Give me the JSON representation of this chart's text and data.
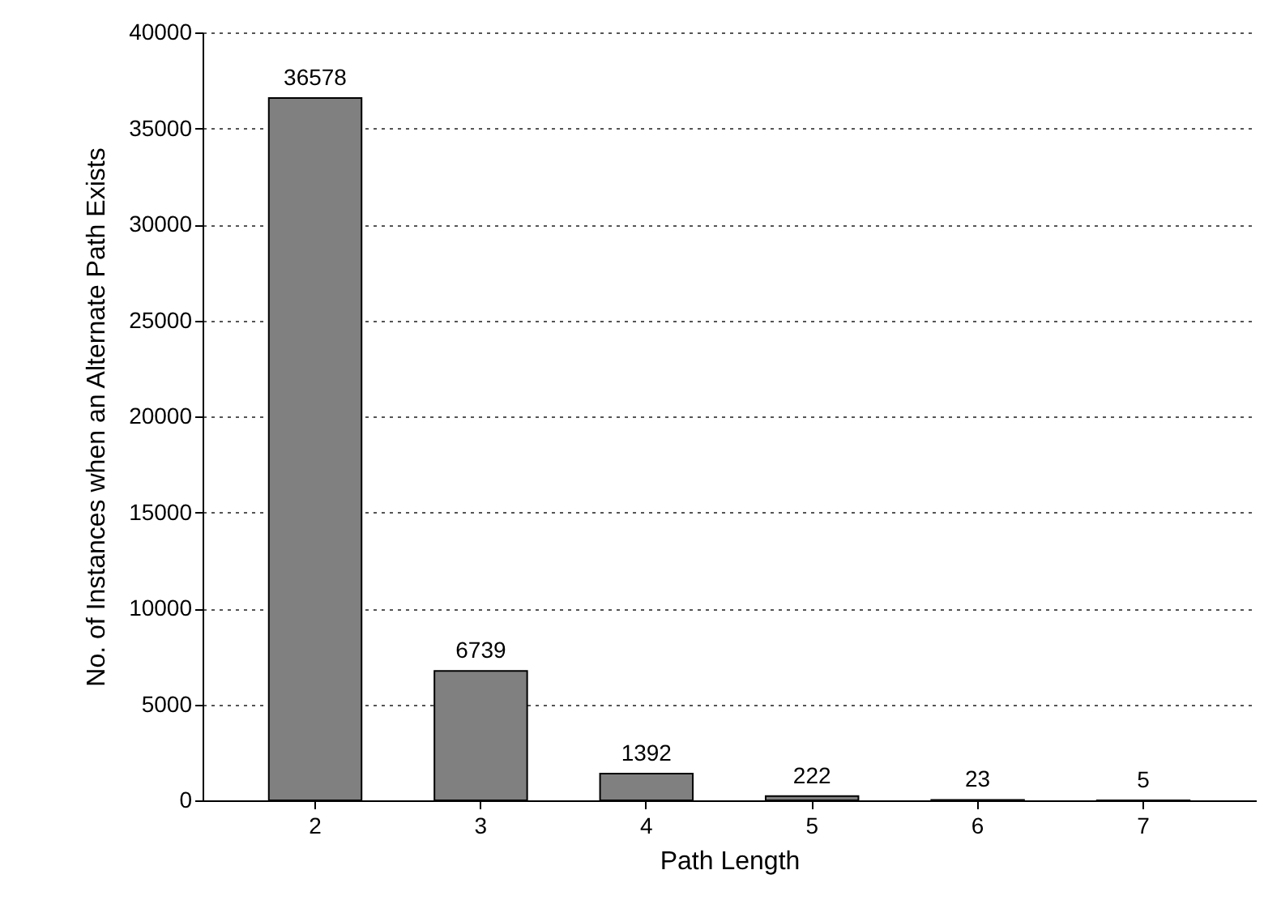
{
  "chart_data": {
    "type": "bar",
    "xlabel": "Path Length",
    "ylabel": "No. of Instances when an Alternate Path Exists",
    "categories": [
      "2",
      "3",
      "4",
      "5",
      "6",
      "7"
    ],
    "values": [
      36578,
      6739,
      1392,
      222,
      23,
      5
    ],
    "color": "#808080",
    "ylim": [
      0,
      40000
    ],
    "yticks": [
      0,
      5000,
      10000,
      15000,
      20000,
      25000,
      30000,
      35000,
      40000
    ],
    "grid": "y",
    "data_labels": true
  }
}
